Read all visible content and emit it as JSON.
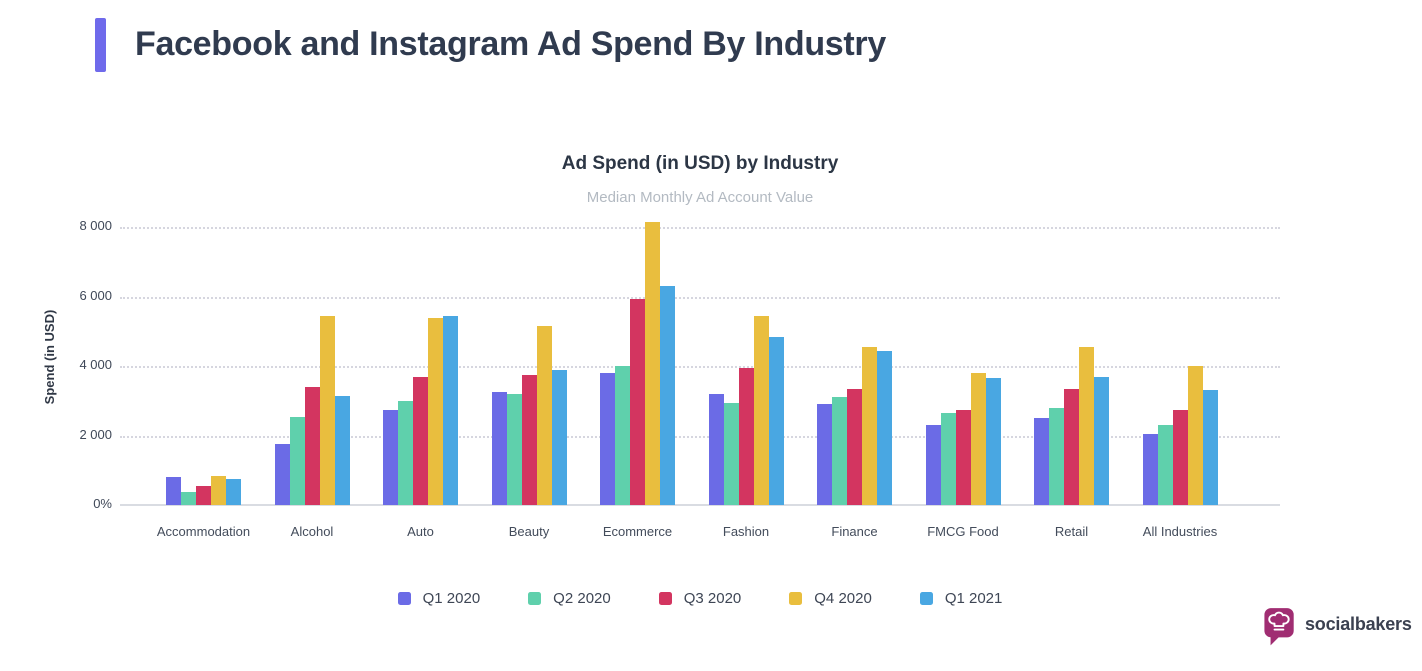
{
  "header": {
    "title": "Facebook and Instagram Ad Spend By Industry",
    "accent_color": "#6f6aeb"
  },
  "chart_data": {
    "type": "bar",
    "title": "Ad Spend (in USD) by Industry",
    "subtitle": "Median Monthly Ad Account Value",
    "ylabel": "Spend (in USD)",
    "xlabel": "",
    "grid": "horizontal-dotted",
    "legend_position": "bottom",
    "y_axis": {
      "max": 8500,
      "ticks": [
        {
          "value": 8000,
          "label": "8 000"
        },
        {
          "value": 6000,
          "label": "6 000"
        },
        {
          "value": 4000,
          "label": "4 000"
        },
        {
          "value": 2000,
          "label": "2 000"
        },
        {
          "value": 0,
          "label": "0%"
        }
      ]
    },
    "categories": [
      "Accommodation",
      "Alcohol",
      "Auto",
      "Beauty",
      "Ecommerce",
      "Fashion",
      "Finance",
      "FMCG Food",
      "Retail",
      "All Industries"
    ],
    "series": [
      {
        "name": "Q1 2020",
        "color": "#6b6be6",
        "values": [
          800,
          1750,
          2750,
          3250,
          3800,
          3200,
          2900,
          2300,
          2500,
          2050
        ]
      },
      {
        "name": "Q2 2020",
        "color": "#5fd0ac",
        "values": [
          380,
          2550,
          3000,
          3200,
          4000,
          2950,
          3100,
          2650,
          2800,
          2300
        ]
      },
      {
        "name": "Q3 2020",
        "color": "#d33560",
        "values": [
          560,
          3400,
          3700,
          3750,
          5950,
          3950,
          3350,
          2750,
          3350,
          2750
        ]
      },
      {
        "name": "Q4 2020",
        "color": "#e9be3e",
        "values": [
          840,
          5450,
          5400,
          5150,
          8150,
          5450,
          4550,
          3800,
          4550,
          4000
        ]
      },
      {
        "name": "Q1 2021",
        "color": "#49a7e2",
        "values": [
          760,
          3150,
          5450,
          3900,
          6300,
          4850,
          4450,
          3650,
          3700,
          3300
        ]
      }
    ]
  },
  "footer": {
    "brand": "socialbakers",
    "brand_color": "#a02d72"
  }
}
